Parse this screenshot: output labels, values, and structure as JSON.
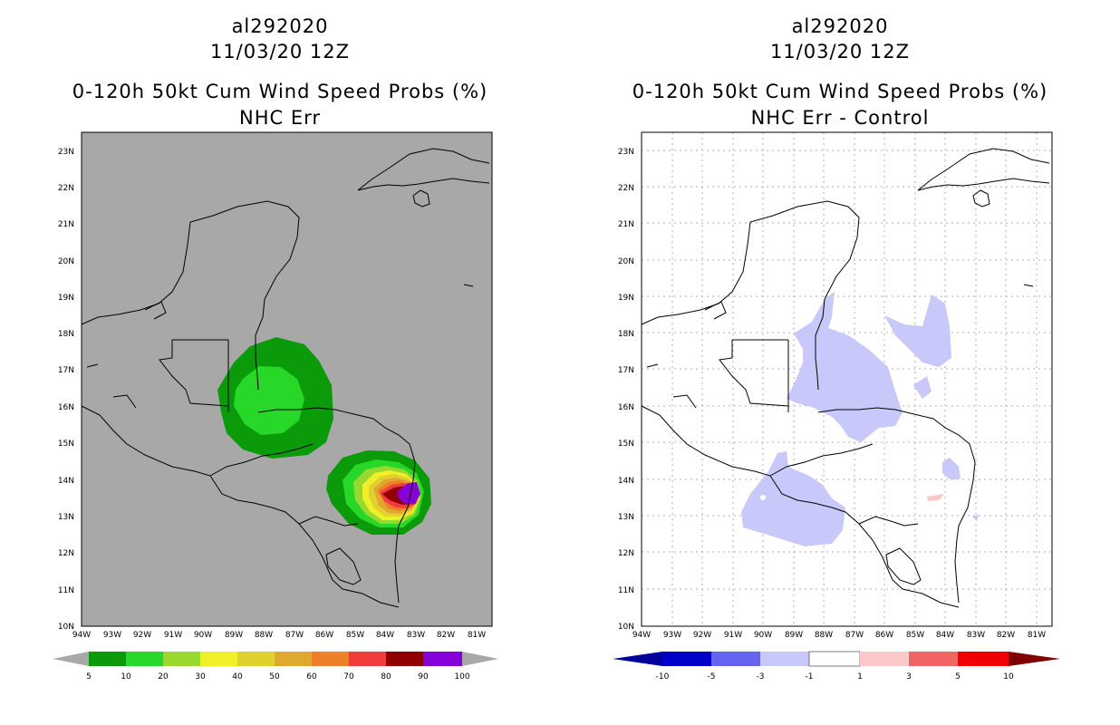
{
  "panels": [
    {
      "storm_id": "al292020",
      "date": "11/03/20 12Z",
      "product": "0-120h 50kt Cum Wind Speed Probs (%)",
      "subtitle": "NHC Err",
      "background_color": "#a8a8a8",
      "grid_lines": false,
      "colorbar": {
        "colors": [
          "#0a9a0a",
          "#28d828",
          "#98d830",
          "#f0f028",
          "#e0d030",
          "#e0a830",
          "#f08028",
          "#f03c3c",
          "#900000",
          "#8800d8"
        ],
        "labels": [
          "5",
          "10",
          "20",
          "30",
          "40",
          "50",
          "60",
          "70",
          "80",
          "90",
          "100"
        ],
        "under_color": "#a8a8a8",
        "over_color": "#a8a8a8"
      }
    },
    {
      "storm_id": "al292020",
      "date": "11/03/20 12Z",
      "product": "0-120h 50kt Cum Wind Speed Probs (%)",
      "subtitle": "NHC Err - Control",
      "background_color": "#ffffff",
      "grid_lines": true,
      "colorbar": {
        "colors": [
          "#0000c8",
          "#6464f0",
          "#c8c8fa",
          "#ffffff",
          "#fac8c8",
          "#f06464",
          "#f00000"
        ],
        "labels": [
          "-10",
          "-5",
          "-3",
          "-1",
          "1",
          "3",
          "5",
          "10"
        ],
        "under_color": "#00009a",
        "over_color": "#800000"
      }
    }
  ],
  "axes": {
    "lat_labels": [
      "23N",
      "22N",
      "21N",
      "20N",
      "19N",
      "18N",
      "17N",
      "16N",
      "15N",
      "14N",
      "13N",
      "12N",
      "11N",
      "10N"
    ],
    "lon_labels": [
      "94W",
      "93W",
      "92W",
      "91W",
      "90W",
      "89W",
      "88W",
      "87W",
      "86W",
      "85W",
      "84W",
      "83W",
      "82W",
      "81W"
    ]
  }
}
